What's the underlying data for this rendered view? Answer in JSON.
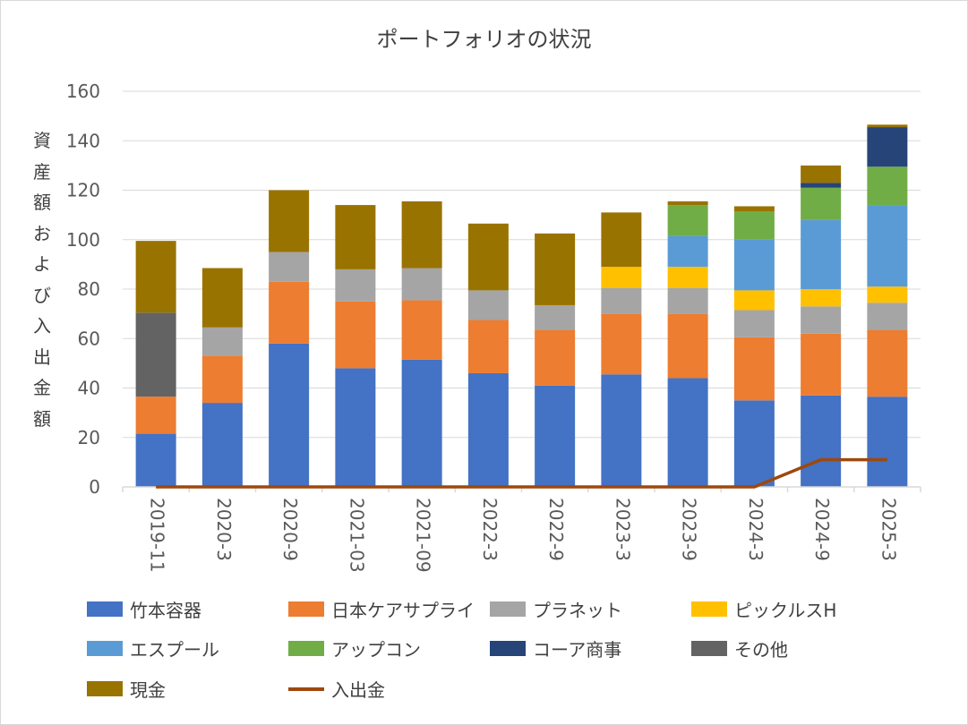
{
  "chart_data": {
    "type": "bar",
    "stacked": true,
    "title": "ポートフォリオの状況",
    "ylabel": "資産額および入出金額",
    "xlabel": "",
    "ylim": [
      0,
      160
    ],
    "yticks": [
      "0",
      "20",
      "40",
      "60",
      "80",
      "100",
      "120",
      "140",
      "160"
    ],
    "grid": true,
    "legend": "bottom",
    "categories": [
      "2019-11",
      "2020-3",
      "2020-9",
      "2021-03",
      "2021-09",
      "2022-3",
      "2022-9",
      "2023-3",
      "2023-9",
      "2024-3",
      "2024-9",
      "2025-3"
    ],
    "series": [
      {
        "name": "竹本容器",
        "color": "#4472c4",
        "values": [
          21.5,
          34,
          58,
          48,
          51.5,
          46,
          41,
          45.5,
          44,
          35,
          37,
          36.5
        ]
      },
      {
        "name": "日本ケアサプライ",
        "color": "#ed7d31",
        "values": [
          15,
          19,
          25,
          27,
          24,
          21.5,
          22.5,
          24.5,
          26,
          25.5,
          25,
          27
        ]
      },
      {
        "name": "プラネット",
        "color": "#a5a5a5",
        "values": [
          0,
          11.5,
          12,
          13,
          13,
          12,
          10,
          10.5,
          10.5,
          11,
          11,
          11
        ]
      },
      {
        "name": "ピックルスH",
        "color": "#ffc000",
        "values": [
          0,
          0,
          0,
          0,
          0,
          0,
          0,
          8.5,
          8.5,
          8,
          7,
          6.5
        ]
      },
      {
        "name": "エスプール",
        "color": "#5b9bd5",
        "values": [
          0,
          0,
          0,
          0,
          0,
          0,
          0,
          0,
          12.5,
          20.5,
          28,
          33
        ]
      },
      {
        "name": "アップコン",
        "color": "#70ad47",
        "values": [
          0,
          0,
          0,
          0,
          0,
          0,
          0,
          0,
          12.5,
          11.5,
          13,
          15.5
        ]
      },
      {
        "name": "コーア商事",
        "color": "#264478",
        "values": [
          0,
          0,
          0,
          0,
          0,
          0,
          0,
          0,
          0,
          0,
          2,
          16
        ]
      },
      {
        "name": "その他",
        "color": "#636363",
        "values": [
          34,
          0,
          0,
          0,
          0,
          0,
          0,
          0,
          0,
          0,
          0,
          0
        ]
      },
      {
        "name": "現金",
        "color": "#997300",
        "values": [
          29,
          24,
          25,
          26,
          27,
          27,
          29,
          22,
          1.5,
          2,
          7,
          1
        ]
      }
    ],
    "line_series": {
      "name": "入出金",
      "color": "#9e480e",
      "values": [
        0,
        0,
        0,
        0,
        0,
        0,
        0,
        0,
        0,
        0,
        11,
        11
      ]
    }
  },
  "legend_items": [
    {
      "label": "竹本容器",
      "color": "#4472c4",
      "kind": "box"
    },
    {
      "label": "日本ケアサプライ",
      "color": "#ed7d31",
      "kind": "box"
    },
    {
      "label": "プラネット",
      "color": "#a5a5a5",
      "kind": "box"
    },
    {
      "label": "ピックルスH",
      "color": "#ffc000",
      "kind": "box"
    },
    {
      "label": "エスプール",
      "color": "#5b9bd5",
      "kind": "box"
    },
    {
      "label": "アップコン",
      "color": "#70ad47",
      "kind": "box"
    },
    {
      "label": "コーア商事",
      "color": "#264478",
      "kind": "box"
    },
    {
      "label": "その他",
      "color": "#636363",
      "kind": "box"
    },
    {
      "label": "現金",
      "color": "#997300",
      "kind": "box"
    },
    {
      "label": "入出金",
      "color": "#9e480e",
      "kind": "line"
    }
  ]
}
